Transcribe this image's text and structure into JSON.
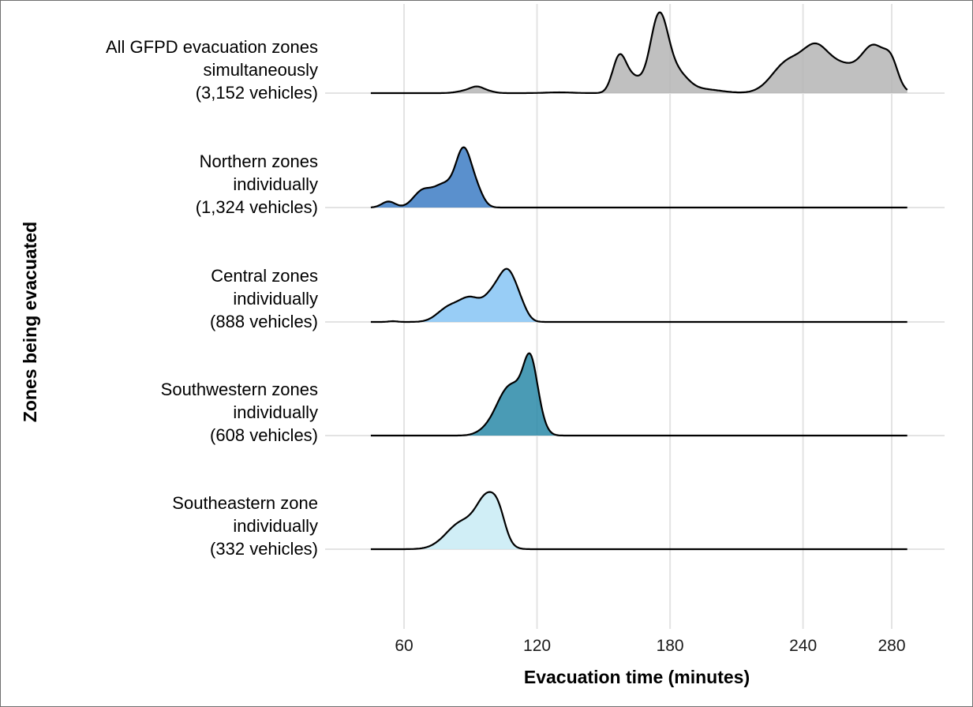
{
  "chart_data": {
    "type": "area",
    "subtype": "ridgeline-density",
    "xlabel": "Evacuation time (minutes)",
    "ylabel": "Zones being evacuated",
    "xlim": [
      45,
      290
    ],
    "xticks": [
      60,
      120,
      180,
      240,
      280
    ],
    "grid": true,
    "legend": "none",
    "categories": [
      {
        "name": "All GFPD evacuation zones simultaneously (3,152 vehicles)",
        "label_lines": [
          "All GFPD evacuation zones",
          "simultaneously",
          "(3,152 vehicles)"
        ],
        "color": "#b5b5b5",
        "peaks": [
          [
            88,
            0.03,
            4
          ],
          [
            93,
            0.07,
            3
          ],
          [
            98,
            0.02,
            3
          ],
          [
            130,
            0.01,
            6
          ],
          [
            157,
            0.45,
            3
          ],
          [
            163,
            0.2,
            4
          ],
          [
            175,
            1.0,
            4
          ],
          [
            183,
            0.25,
            5
          ],
          [
            195,
            0.05,
            8
          ],
          [
            233,
            0.4,
            7
          ],
          [
            246,
            0.55,
            6
          ],
          [
            258,
            0.3,
            6
          ],
          [
            272,
            0.62,
            6
          ],
          [
            280,
            0.25,
            3
          ]
        ],
        "x_range": [
          45,
          287
        ]
      },
      {
        "name": "Northern zones individually (1,324 vehicles)",
        "label_lines": [
          "Northern zones",
          "individually",
          "(1,324 vehicles)"
        ],
        "color": "#3d7cc4",
        "peaks": [
          [
            53,
            0.08,
            3
          ],
          [
            68,
            0.2,
            4
          ],
          [
            78,
            0.3,
            5
          ],
          [
            87,
            0.72,
            3.5
          ],
          [
            93,
            0.18,
            3
          ]
        ],
        "x_range": [
          45,
          287
        ]
      },
      {
        "name": "Central zones individually (888 vehicles)",
        "label_lines": [
          "Central zones",
          "individually",
          "(888 vehicles)"
        ],
        "color": "#86c4f5",
        "peaks": [
          [
            55,
            0.01,
            2
          ],
          [
            80,
            0.18,
            5
          ],
          [
            90,
            0.3,
            5
          ],
          [
            100,
            0.3,
            4
          ],
          [
            107,
            0.62,
            4
          ],
          [
            113,
            0.12,
            3
          ]
        ],
        "x_range": [
          45,
          287
        ]
      },
      {
        "name": "Southwestern zones individually (608 vehicles)",
        "label_lines": [
          "Southwestern zones",
          "individually",
          "(608 vehicles)"
        ],
        "color": "#2a8aa8",
        "peaks": [
          [
            96,
            0.04,
            4
          ],
          [
            105,
            0.42,
            5
          ],
          [
            112,
            0.45,
            5
          ],
          [
            117,
            0.73,
            3
          ],
          [
            121,
            0.15,
            3
          ]
        ],
        "x_range": [
          45,
          287
        ]
      },
      {
        "name": "Southeastern zone individually (332 vehicles)",
        "label_lines": [
          "Southeastern zone",
          "individually",
          "(332 vehicles)"
        ],
        "color": "#c8ebf4",
        "peaks": [
          [
            86,
            0.35,
            7
          ],
          [
            98,
            0.63,
            5
          ],
          [
            103,
            0.2,
            3
          ]
        ],
        "x_range": [
          45,
          287
        ]
      }
    ]
  }
}
